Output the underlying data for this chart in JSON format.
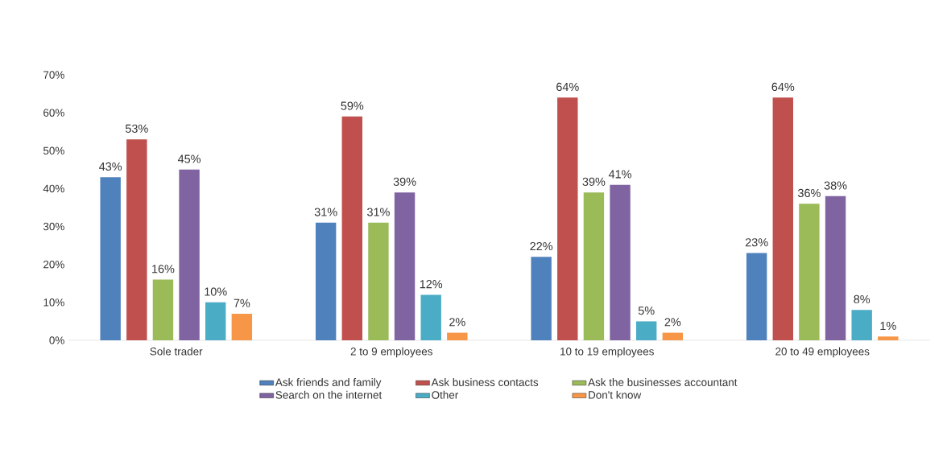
{
  "chart_data": {
    "type": "bar",
    "categories": [
      "Sole trader",
      "2 to 9 employees",
      "10 to 19 employees",
      "20 to 49 employees"
    ],
    "series": [
      {
        "name": "Ask friends and family",
        "color": "#4f81bd",
        "values": [
          43,
          31,
          22,
          23
        ],
        "value_labels": [
          "43%",
          "31%",
          "22%",
          "23%"
        ]
      },
      {
        "name": "Ask business contacts",
        "color": "#c0504d",
        "values": [
          53,
          59,
          64,
          64
        ],
        "value_labels": [
          "53%",
          "59%",
          "64%",
          "64%"
        ]
      },
      {
        "name": "Ask the businesses accountant",
        "color": "#9bbb59",
        "values": [
          16,
          31,
          39,
          36
        ],
        "value_labels": [
          "16%",
          "31%",
          "39%",
          "36%"
        ]
      },
      {
        "name": "Search on the internet",
        "color": "#8064a2",
        "values": [
          45,
          39,
          41,
          38
        ],
        "value_labels": [
          "45%",
          "39%",
          "41%",
          "38%"
        ]
      },
      {
        "name": "Other",
        "color": "#4bacc6",
        "values": [
          10,
          12,
          5,
          8
        ],
        "value_labels": [
          "10%",
          "12%",
          "5%",
          "8%"
        ]
      },
      {
        "name": "Don't know",
        "color": "#f79646",
        "values": [
          7,
          2,
          2,
          1
        ],
        "value_labels": [
          "7%",
          "2%",
          "2%",
          "1%"
        ]
      }
    ],
    "ylim": [
      0,
      70
    ],
    "yticks": [
      {
        "value": 0,
        "label": "0%"
      },
      {
        "value": 10,
        "label": "10%"
      },
      {
        "value": 20,
        "label": "20%"
      },
      {
        "value": 30,
        "label": "30%"
      },
      {
        "value": 40,
        "label": "40%"
      },
      {
        "value": 50,
        "label": "50%"
      },
      {
        "value": 60,
        "label": "60%"
      },
      {
        "value": 70,
        "label": "70%"
      }
    ],
    "grid": false,
    "legend": "bottom"
  }
}
